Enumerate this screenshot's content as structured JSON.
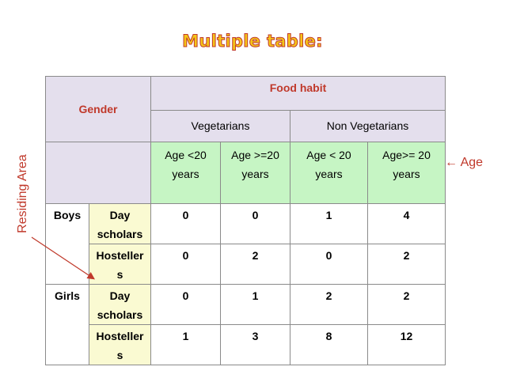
{
  "title": "Multiple table:",
  "side_label": "Residing Area",
  "age_label": "Age",
  "age_arrow": "←",
  "table": {
    "gender_header": "Gender",
    "food_habit_header": "Food habit",
    "groups": [
      "Vegetarians",
      "Non Vegetarians"
    ],
    "age_headers": [
      [
        "Age <20",
        "years"
      ],
      [
        "Age >=20",
        "years"
      ],
      [
        "Age < 20",
        "years"
      ],
      [
        "Age>= 20",
        "years"
      ]
    ],
    "rows": [
      {
        "gender": "Boys",
        "area": [
          "Day",
          "scholars"
        ],
        "values": [
          "0",
          "0",
          "1",
          "4"
        ]
      },
      {
        "gender": "",
        "area": [
          "Hosteller",
          "s"
        ],
        "values": [
          "0",
          "2",
          "0",
          "2"
        ]
      },
      {
        "gender": "Girls",
        "area": [
          "Day",
          "scholars"
        ],
        "values": [
          "0",
          "1",
          "2",
          "2"
        ]
      },
      {
        "gender": "",
        "area": [
          "Hosteller",
          "s"
        ],
        "values": [
          "1",
          "3",
          "8",
          "12"
        ]
      }
    ]
  },
  "colors": {
    "header_bg": "#e4dfed",
    "age_bg": "#c6f5c4",
    "area_bg": "#fafad2",
    "accent_red": "#c0392b",
    "title_fill": "#f5c518"
  }
}
